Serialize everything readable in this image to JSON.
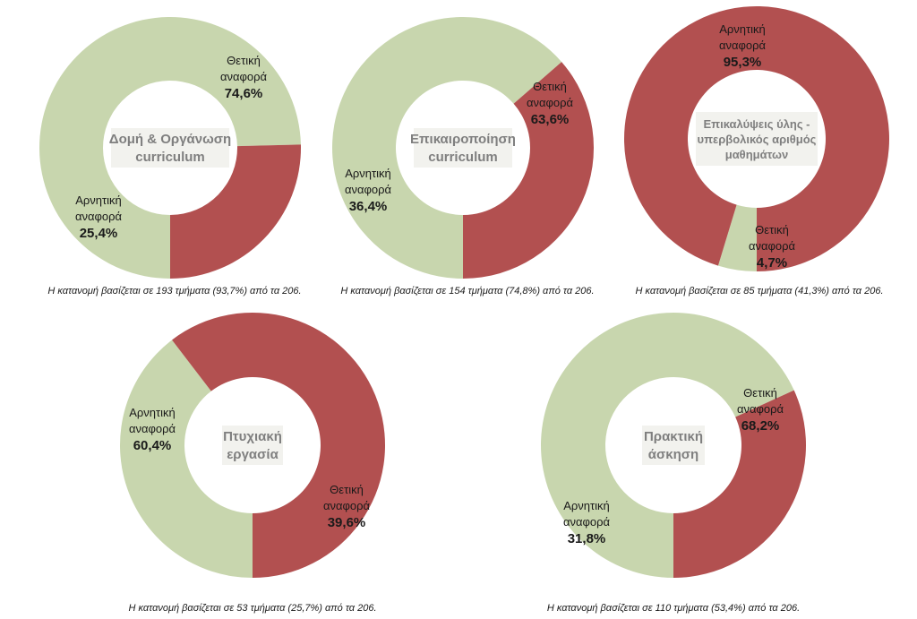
{
  "colors": {
    "positive": "#c8d6ae",
    "negative": "#b25050",
    "center_box": "#f2f2ee",
    "text": "#1a1a1a",
    "center_text": "#7f7f7f"
  },
  "chart_data": [
    {
      "type": "pie",
      "center_label": [
        "Δομή & Οργάνωση",
        "curriculum"
      ],
      "slices": [
        {
          "label": [
            "Θετική",
            "αναφορά"
          ],
          "value": 74.6,
          "value_text": "74,6%",
          "color_key": "positive"
        },
        {
          "label": [
            "Αρνητική",
            "αναφορά"
          ],
          "value": 25.4,
          "value_text": "25,4%",
          "color_key": "negative"
        }
      ],
      "footnote": "Η κατανομή βασίζεται σε 193 τμήματα (93,7%) από τα 206."
    },
    {
      "type": "pie",
      "center_label": [
        "Επικαιροποίηση",
        "curriculum"
      ],
      "slices": [
        {
          "label": [
            "Θετική",
            "αναφορά"
          ],
          "value": 63.6,
          "value_text": "63,6%",
          "color_key": "positive"
        },
        {
          "label": [
            "Αρνητική",
            "αναφορά"
          ],
          "value": 36.4,
          "value_text": "36,4%",
          "color_key": "negative"
        }
      ],
      "footnote": "Η κατανομή βασίζεται σε 154 τμήματα (74,8%) από τα 206."
    },
    {
      "type": "pie",
      "center_label": [
        "Επικαλύψεις ύλης -",
        "υπερβολικός αριθμός",
        "μαθημάτων"
      ],
      "slices": [
        {
          "label": [
            "Θετική",
            "αναφορά"
          ],
          "value": 4.7,
          "value_text": "4,7%",
          "color_key": "positive"
        },
        {
          "label": [
            "Αρνητική",
            "αναφορά"
          ],
          "value": 95.3,
          "value_text": "95,3%",
          "color_key": "negative"
        }
      ],
      "footnote": "Η κατανομή βασίζεται σε 85 τμήματα (41,3%) από τα 206."
    },
    {
      "type": "pie",
      "center_label": [
        "Πτυχιακή",
        "εργασία"
      ],
      "slices": [
        {
          "label": [
            "Θετική",
            "αναφορά"
          ],
          "value": 39.6,
          "value_text": "39,6%",
          "color_key": "positive"
        },
        {
          "label": [
            "Αρνητική",
            "αναφορά"
          ],
          "value": 60.4,
          "value_text": "60,4%",
          "color_key": "negative"
        }
      ],
      "footnote": "Η κατανομή βασίζεται σε 53 τμήματα (25,7%) από τα 206."
    },
    {
      "type": "pie",
      "center_label": [
        "Πρακτική",
        "άσκηση"
      ],
      "slices": [
        {
          "label": [
            "Θετική",
            "αναφορά"
          ],
          "value": 68.2,
          "value_text": "68,2%",
          "color_key": "positive"
        },
        {
          "label": [
            "Αρνητική",
            "αναφορά"
          ],
          "value": 31.8,
          "value_text": "31,8%",
          "color_key": "negative"
        }
      ],
      "footnote": "Η κατανομή βασίζεται σε 110 τμήματα (53,4%) από τα 206."
    }
  ]
}
